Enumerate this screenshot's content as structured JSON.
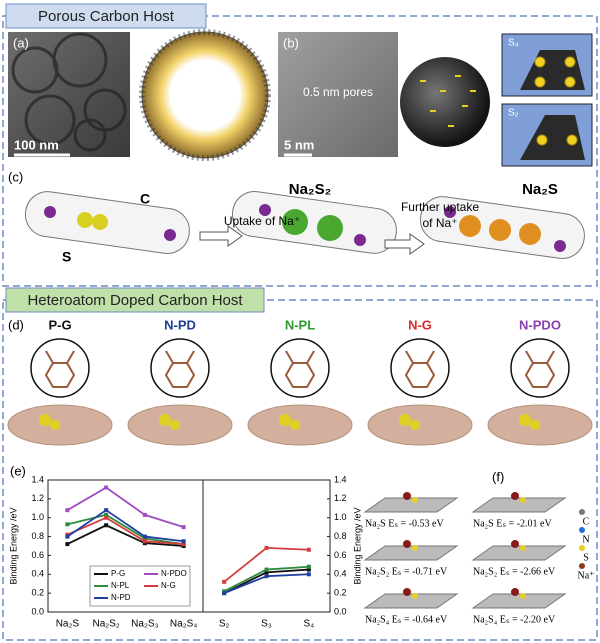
{
  "porous": {
    "title": "Porous Carbon Host",
    "a_label": "(a)",
    "a_scale": "100 nm",
    "b_label": "(b)",
    "b_pores": "0.5 nm pores",
    "b_scale": "5 nm",
    "s4": "S₄",
    "s2": "S₂",
    "c_label": "(c)",
    "c_carbon": "C",
    "c_sulfur": "S",
    "c_uptake": "Uptake of Na⁺",
    "c_na2s2": "Na₂S₂",
    "c_further_1": "Further uptake",
    "c_further_2": "of Na⁺",
    "c_na2s": "Na₂S"
  },
  "doped": {
    "title": "Heteroatom Doped Carbon Host",
    "d_label": "(d)",
    "materials": [
      {
        "name": "P-G",
        "color": "#111111"
      },
      {
        "name": "N-PD",
        "color": "#1f3d99"
      },
      {
        "name": "N-PL",
        "color": "#2e9a2e"
      },
      {
        "name": "N-G",
        "color": "#d62a2a"
      },
      {
        "name": "N-PDO",
        "color": "#8a3fb0"
      }
    ],
    "e_label": "(e)",
    "f_label": "(f)",
    "f_entries": [
      "Na₂S Eₛ = -0.53 eV",
      "Na₂S Eₛ = -2.01 eV",
      "Na₂S₂ Eₛ = -0.71 eV",
      "Na₂S₂ Eₛ = -2.66 eV",
      "Na₂S₄ Eₛ = -0.64 eV",
      "Na₂S₄ Eₛ = -2.20 eV"
    ],
    "f_legend": [
      {
        "name": "C",
        "color": "#777777"
      },
      {
        "name": "N",
        "color": "#2a6fd6"
      },
      {
        "name": "S",
        "color": "#e8d020"
      },
      {
        "name": "Na⁺",
        "color": "#8b3a1a"
      }
    ]
  },
  "chart_data": [
    {
      "type": "line",
      "y_label": "Binding Energy /eV",
      "categories": [
        "Na₂S",
        "Na₂S₂",
        "Na₂S₃",
        "Na₂S₄"
      ],
      "ylim": [
        0,
        1.4
      ],
      "yticks": [
        {
          "value": 0,
          "label": "0.0"
        },
        {
          "value": 0.2,
          "label": "0.2"
        },
        {
          "value": 0.4,
          "label": "0.4"
        },
        {
          "value": 0.6,
          "label": "0.6"
        },
        {
          "value": 0.8,
          "label": "0.8"
        },
        {
          "value": 1.0,
          "label": "1.0"
        },
        {
          "value": 1.2,
          "label": "1.2"
        },
        {
          "value": 1.4,
          "label": "1.4"
        }
      ],
      "series": [
        {
          "name": "P-G",
          "color": "#111111",
          "values": [
            0.72,
            0.92,
            0.73,
            0.7
          ]
        },
        {
          "name": "N-PDO",
          "color": "#a04cc0",
          "values": [
            1.08,
            1.32,
            1.03,
            0.9
          ]
        },
        {
          "name": "N-PL",
          "color": "#2e8b3e",
          "values": [
            0.93,
            1.03,
            0.78,
            0.72
          ]
        },
        {
          "name": "N-G",
          "color": "#d63a3a",
          "values": [
            0.82,
            1.0,
            0.75,
            0.72
          ]
        },
        {
          "name": "N-PD",
          "color": "#2040a0",
          "values": [
            0.8,
            1.08,
            0.8,
            0.75
          ]
        }
      ]
    },
    {
      "type": "line",
      "y_label": "Binding Energy /eV",
      "categories": [
        "S₂",
        "S₃",
        "S₄"
      ],
      "ylim": [
        0,
        1.4
      ],
      "yticks": [
        {
          "value": 0,
          "label": "0.0"
        },
        {
          "value": 0.2,
          "label": "0.2"
        },
        {
          "value": 0.4,
          "label": "0.4"
        },
        {
          "value": 0.6,
          "label": "0.6"
        },
        {
          "value": 0.8,
          "label": "0.8"
        },
        {
          "value": 1.0,
          "label": "1.0"
        },
        {
          "value": 1.2,
          "label": "1.2"
        },
        {
          "value": 1.4,
          "label": "1.4"
        }
      ],
      "series": [
        {
          "name": "P-G",
          "color": "#111111",
          "values": [
            0.2,
            0.42,
            0.45
          ]
        },
        {
          "name": "N-PL",
          "color": "#2e8b3e",
          "values": [
            0.22,
            0.45,
            0.48
          ]
        },
        {
          "name": "N-G",
          "color": "#d63a3a",
          "values": [
            0.32,
            0.68,
            0.66
          ]
        },
        {
          "name": "N-PD",
          "color": "#2040a0",
          "values": [
            0.2,
            0.38,
            0.4
          ]
        }
      ]
    }
  ]
}
